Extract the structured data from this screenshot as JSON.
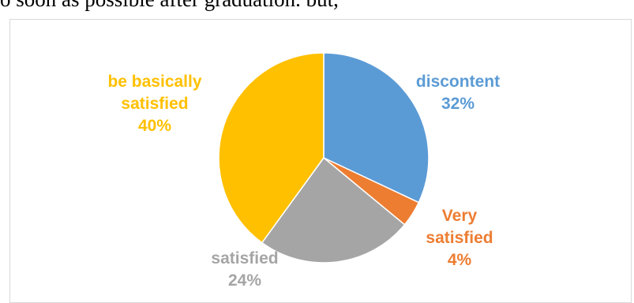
{
  "document": {
    "text_line": "o soon as possible after graduation. but,"
  },
  "chart_data": {
    "type": "pie",
    "title": "",
    "categories": [
      "discontent",
      "Very satisfied",
      "satisfied",
      "be basically satisfied"
    ],
    "values": [
      32,
      4,
      24,
      40
    ],
    "value_labels": [
      "32%",
      "4%",
      "24%",
      "40%"
    ],
    "colors": [
      "#5b9bd5",
      "#ed7d31",
      "#a5a5a5",
      "#ffc000"
    ],
    "label_lines": [
      [
        "discontent",
        "32%"
      ],
      [
        "Very",
        "satisfied",
        "4%"
      ],
      [
        "satisfied",
        "24%"
      ],
      [
        "be basically",
        "satisfied",
        "40%"
      ]
    ],
    "legend": "none"
  }
}
